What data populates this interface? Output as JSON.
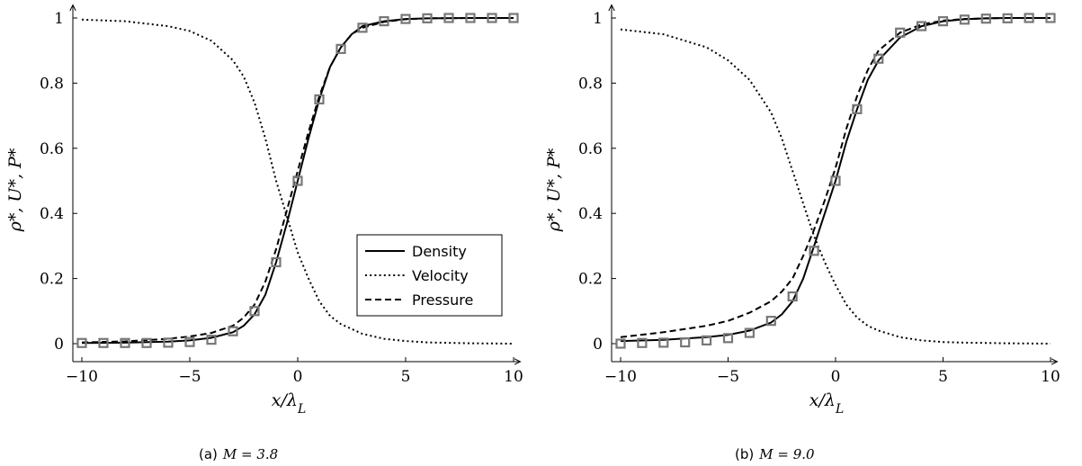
{
  "chart_data": [
    {
      "type": "line",
      "caption_tag": "(a)",
      "caption_math": "M = 3.8",
      "xlabel": "x/λ",
      "xlabel_sub": "L",
      "ylabel": "ρ*, U*, P*",
      "xlim": [
        -10,
        10
      ],
      "ylim": [
        0,
        1
      ],
      "xticks": [
        -10,
        -5,
        0,
        5,
        10
      ],
      "xtick_labels": [
        "−10",
        "−5",
        "0",
        "5",
        "10"
      ],
      "yticks": [
        0,
        0.2,
        0.4,
        0.6,
        0.8,
        1
      ],
      "ytick_labels": [
        "0",
        "0.2",
        "0.4",
        "0.6",
        "0.8",
        "1"
      ],
      "legend_position": "bottom-right",
      "series": [
        {
          "name": "Density",
          "style": "solid",
          "x": [
            -10,
            -8,
            -6,
            -5,
            -4,
            -3,
            -2.5,
            -2,
            -1.5,
            -1,
            -0.5,
            0,
            0.5,
            1,
            1.5,
            2,
            2.5,
            3,
            4,
            5,
            6,
            8,
            10
          ],
          "y": [
            0.002,
            0.003,
            0.006,
            0.01,
            0.018,
            0.035,
            0.055,
            0.09,
            0.15,
            0.25,
            0.37,
            0.5,
            0.63,
            0.75,
            0.85,
            0.91,
            0.95,
            0.975,
            0.99,
            0.997,
            0.999,
            1.0,
            1.0
          ]
        },
        {
          "name": "Velocity",
          "style": "dotted",
          "x": [
            -10,
            -8,
            -6,
            -5,
            -4,
            -3,
            -2.5,
            -2,
            -1.5,
            -1,
            -0.5,
            0,
            0.5,
            1,
            1.5,
            2,
            3,
            4,
            5,
            6,
            8,
            10
          ],
          "y": [
            0.995,
            0.99,
            0.975,
            0.96,
            0.93,
            0.87,
            0.82,
            0.74,
            0.63,
            0.5,
            0.39,
            0.28,
            0.2,
            0.13,
            0.085,
            0.06,
            0.03,
            0.015,
            0.008,
            0.004,
            0.001,
            0.0
          ]
        },
        {
          "name": "Pressure",
          "style": "dashed",
          "x": [
            -10,
            -8,
            -6,
            -5,
            -4,
            -3,
            -2.5,
            -2,
            -1.5,
            -1,
            -0.5,
            0,
            0.5,
            1,
            1.5,
            2,
            2.5,
            3,
            4,
            5,
            6,
            8,
            10
          ],
          "y": [
            0.004,
            0.007,
            0.015,
            0.022,
            0.033,
            0.055,
            0.08,
            0.12,
            0.19,
            0.29,
            0.41,
            0.53,
            0.65,
            0.76,
            0.85,
            0.91,
            0.95,
            0.97,
            0.988,
            0.996,
            0.999,
            1.0,
            1.0
          ]
        }
      ],
      "markers": {
        "x": [
          -10,
          -9,
          -8,
          -7,
          -6,
          -5,
          -4,
          -3,
          -2,
          -1,
          0,
          1,
          2,
          3,
          4,
          5,
          6,
          7,
          8,
          9,
          10
        ],
        "y": [
          0.002,
          0.002,
          0.002,
          0.002,
          0.003,
          0.005,
          0.012,
          0.038,
          0.1,
          0.25,
          0.5,
          0.75,
          0.905,
          0.97,
          0.99,
          0.997,
          0.999,
          1.0,
          1.0,
          1.0,
          1.0
        ]
      }
    },
    {
      "type": "line",
      "caption_tag": "(b)",
      "caption_math": "M = 9.0",
      "xlabel": "x/λ",
      "xlabel_sub": "L",
      "ylabel": "ρ*, U*, P*",
      "xlim": [
        -10,
        10
      ],
      "ylim": [
        0,
        1
      ],
      "xticks": [
        -10,
        -5,
        0,
        5,
        10
      ],
      "xtick_labels": [
        "−10",
        "−5",
        "0",
        "5",
        "10"
      ],
      "yticks": [
        0,
        0.2,
        0.4,
        0.6,
        0.8,
        1
      ],
      "ytick_labels": [
        "0",
        "0.2",
        "0.4",
        "0.6",
        "0.8",
        "1"
      ],
      "series": [
        {
          "name": "Density",
          "style": "solid",
          "x": [
            -10,
            -8,
            -6,
            -5,
            -4,
            -3,
            -2.5,
            -2,
            -1.5,
            -1,
            -0.5,
            0,
            0.5,
            1,
            1.5,
            2,
            3,
            4,
            5,
            6,
            7,
            8,
            10
          ],
          "y": [
            0.008,
            0.012,
            0.02,
            0.027,
            0.04,
            0.065,
            0.09,
            0.13,
            0.2,
            0.3,
            0.4,
            0.5,
            0.62,
            0.72,
            0.81,
            0.87,
            0.94,
            0.975,
            0.99,
            0.996,
            0.999,
            1.0,
            1.0
          ]
        },
        {
          "name": "Velocity",
          "style": "dotted",
          "x": [
            -10,
            -8,
            -6,
            -5,
            -4,
            -3,
            -2.5,
            -2,
            -1.5,
            -1,
            -0.5,
            0,
            0.5,
            1,
            1.5,
            2,
            3,
            4,
            5,
            6,
            8,
            10
          ],
          "y": [
            0.965,
            0.95,
            0.91,
            0.87,
            0.81,
            0.71,
            0.63,
            0.53,
            0.43,
            0.33,
            0.25,
            0.18,
            0.12,
            0.08,
            0.055,
            0.04,
            0.02,
            0.01,
            0.005,
            0.003,
            0.001,
            0.0
          ]
        },
        {
          "name": "Pressure",
          "style": "dashed",
          "x": [
            -10,
            -8,
            -6,
            -5,
            -4,
            -3,
            -2.5,
            -2,
            -1.5,
            -1,
            -0.5,
            0,
            0.5,
            1,
            1.5,
            2,
            3,
            4,
            5,
            6,
            7,
            8,
            10
          ],
          "y": [
            0.02,
            0.035,
            0.055,
            0.07,
            0.095,
            0.13,
            0.16,
            0.2,
            0.27,
            0.35,
            0.44,
            0.54,
            0.66,
            0.76,
            0.84,
            0.9,
            0.955,
            0.98,
            0.992,
            0.997,
            0.999,
            1.0,
            1.0
          ]
        }
      ],
      "markers": {
        "x": [
          -10,
          -9,
          -8,
          -7,
          -6,
          -5,
          -4,
          -3,
          -2,
          -1,
          0,
          1,
          2,
          3,
          4,
          5,
          6,
          7,
          8,
          9,
          10
        ],
        "y": [
          0.0,
          0.002,
          0.003,
          0.004,
          0.01,
          0.017,
          0.033,
          0.07,
          0.145,
          0.285,
          0.5,
          0.72,
          0.875,
          0.955,
          0.975,
          0.99,
          0.995,
          0.998,
          0.999,
          1.0,
          1.0
        ]
      }
    }
  ]
}
